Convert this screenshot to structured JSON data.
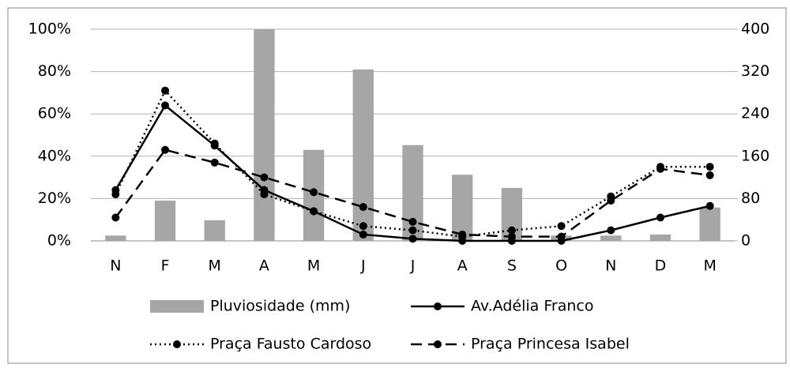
{
  "chart_data": {
    "type": "bar-line",
    "categories": [
      "N",
      "F",
      "M",
      "A",
      "M",
      "J",
      "J",
      "A",
      "S",
      "O",
      "N",
      "D",
      "M"
    ],
    "ylim": [
      0,
      100
    ],
    "yticks": [
      {
        "value": 0,
        "label": "0%"
      },
      {
        "value": 20,
        "label": "20%"
      },
      {
        "value": 40,
        "label": "40%"
      },
      {
        "value": 60,
        "label": "60%"
      },
      {
        "value": 80,
        "label": "80%"
      },
      {
        "value": 100,
        "label": "100%"
      }
    ],
    "y2lim": [
      0,
      400
    ],
    "y2ticks": [
      0,
      80,
      160,
      240,
      320,
      400
    ],
    "grid": true,
    "series": [
      {
        "name": "Pluviosidade (mm)",
        "type": "bar",
        "axis": "y2",
        "color": "#a6a6a6",
        "values": [
          10,
          76,
          39,
          400,
          172,
          324,
          181,
          125,
          100,
          10,
          10,
          12,
          63
        ]
      },
      {
        "name": "Av.Adélia Franco",
        "type": "line",
        "style": "solid",
        "color": "#000000",
        "values": [
          24,
          64,
          45,
          24,
          14,
          3,
          1,
          0,
          0,
          0,
          5,
          11,
          16.5
        ]
      },
      {
        "name": "Praça Fausto Cardoso",
        "type": "line",
        "style": "dotted",
        "color": "#000000",
        "values": [
          22,
          71,
          46,
          22,
          14,
          7,
          5,
          2,
          5,
          7,
          21,
          35,
          35
        ]
      },
      {
        "name": "Praça Princesa Isabel",
        "type": "line",
        "style": "dashed",
        "color": "#000000",
        "values": [
          11,
          43,
          37,
          30,
          23,
          16,
          9,
          3,
          2,
          2,
          19,
          34,
          31
        ]
      }
    ]
  }
}
